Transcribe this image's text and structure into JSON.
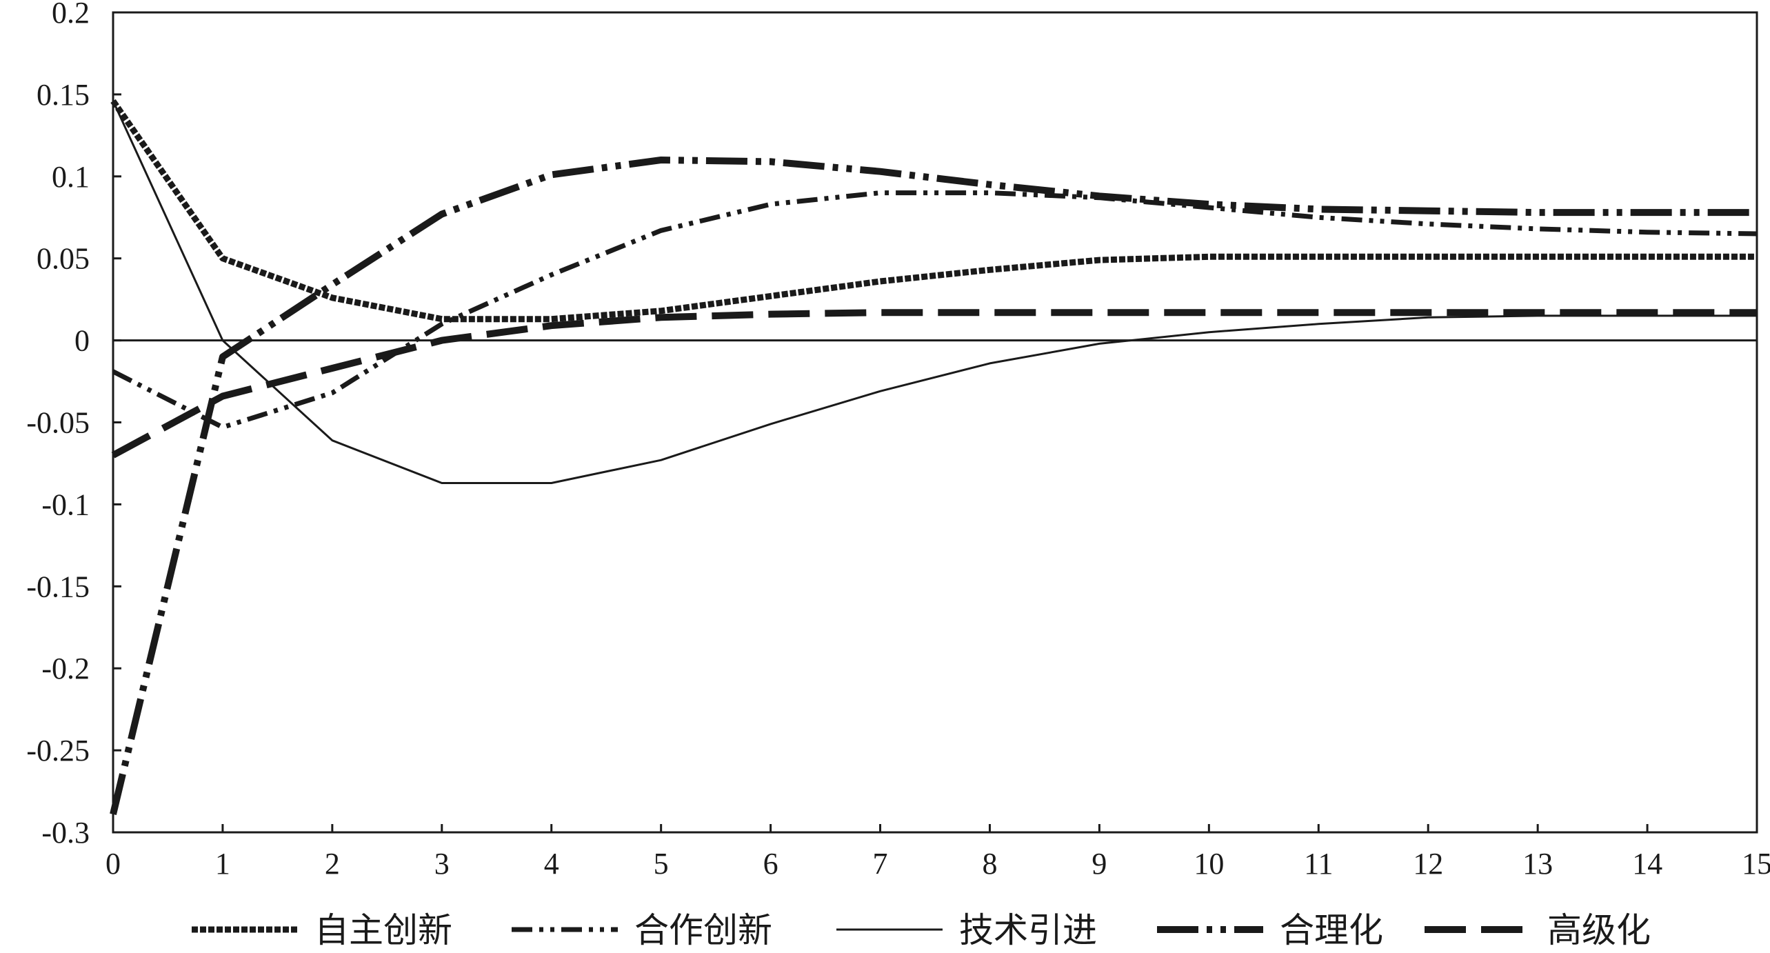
{
  "chart_data": {
    "type": "line",
    "x": [
      0,
      1,
      2,
      3,
      4,
      5,
      6,
      7,
      8,
      9,
      10,
      11,
      12,
      13,
      14,
      15
    ],
    "xlim": [
      0,
      15
    ],
    "ylim": [
      -0.3,
      0.2
    ],
    "x_ticks": [
      "0",
      "1",
      "2",
      "3",
      "4",
      "5",
      "6",
      "7",
      "8",
      "9",
      "10",
      "11",
      "12",
      "13",
      "14",
      "15"
    ],
    "y_ticks": [
      "0.2",
      "0.15",
      "0.1",
      "0.05",
      "0",
      "-0.05",
      "-0.1",
      "-0.15",
      "-0.2",
      "-0.25",
      "-0.3"
    ],
    "grid": false,
    "legend_position": "bottom",
    "series": [
      {
        "name": "自主创新",
        "style": "dense-dashed-thick",
        "values": [
          0.146,
          0.05,
          0.026,
          0.013,
          0.013,
          0.018,
          0.027,
          0.036,
          0.043,
          0.049,
          0.051,
          0.051,
          0.051,
          0.051,
          0.051,
          0.051
        ]
      },
      {
        "name": "合作创新",
        "style": "dash-dot-dot",
        "values": [
          -0.019,
          -0.053,
          -0.032,
          0.01,
          0.04,
          0.067,
          0.083,
          0.09,
          0.09,
          0.087,
          0.081,
          0.075,
          0.071,
          0.068,
          0.066,
          0.065
        ]
      },
      {
        "name": "技术引进",
        "style": "solid-thin",
        "values": [
          0.146,
          0.0,
          -0.061,
          -0.087,
          -0.087,
          -0.073,
          -0.051,
          -0.031,
          -0.014,
          -0.002,
          0.005,
          0.01,
          0.014,
          0.015,
          0.015,
          0.015
        ]
      },
      {
        "name": "合理化",
        "style": "long-dash-dot-dot-thick",
        "values": [
          -0.289,
          -0.01,
          0.034,
          0.077,
          0.101,
          0.11,
          0.109,
          0.103,
          0.095,
          0.088,
          0.083,
          0.08,
          0.079,
          0.078,
          0.078,
          0.078
        ]
      },
      {
        "name": "高级化",
        "style": "long-dash-thick",
        "values": [
          -0.07,
          -0.034,
          -0.017,
          0.0,
          0.009,
          0.014,
          0.016,
          0.017,
          0.017,
          0.017,
          0.017,
          0.017,
          0.017,
          0.017,
          0.017,
          0.017
        ]
      }
    ]
  }
}
